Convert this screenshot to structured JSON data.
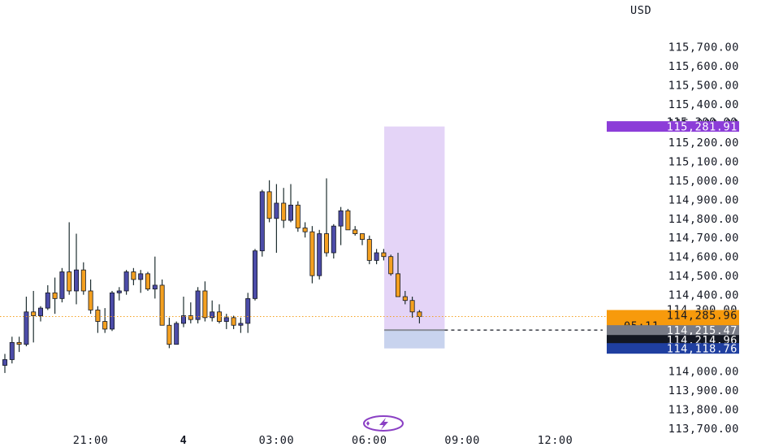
{
  "chart_data": {
    "type": "candlestick",
    "currency_label": "USD",
    "y_ticks": [
      "115,700.00",
      "115,600.00",
      "115,500.00",
      "115,400.00",
      "115,300.00",
      "115,200.00",
      "115,100.00",
      "115,000.00",
      "114,900.00",
      "114,800.00",
      "114,700.00",
      "114,600.00",
      "114,500.00",
      "114,400.00",
      "114,000.00",
      "113,900.00",
      "113,800.00",
      "113,700.00"
    ],
    "x_ticks": [
      {
        "label": "21:00",
        "bar": 12,
        "bold": false
      },
      {
        "label": "4",
        "bar": 25,
        "bold": true
      },
      {
        "label": "03:00",
        "bar": 38,
        "bold": false
      },
      {
        "label": "06:00",
        "bar": 51,
        "bold": false
      },
      {
        "label": "09:00",
        "bar": 64,
        "bold": false
      },
      {
        "label": "12:00",
        "bar": 77,
        "bold": false
      }
    ],
    "ylim": [
      113700,
      115800
    ],
    "candles": [
      {
        "o": 114030,
        "h": 114090,
        "l": 113990,
        "c": 114060
      },
      {
        "o": 114060,
        "h": 114180,
        "l": 114040,
        "c": 114150
      },
      {
        "o": 114150,
        "h": 114180,
        "l": 114100,
        "c": 114140
      },
      {
        "o": 114140,
        "h": 114390,
        "l": 114130,
        "c": 114310
      },
      {
        "o": 114310,
        "h": 114420,
        "l": 114150,
        "c": 114290
      },
      {
        "o": 114290,
        "h": 114340,
        "l": 114260,
        "c": 114330
      },
      {
        "o": 114330,
        "h": 114450,
        "l": 114320,
        "c": 114410
      },
      {
        "o": 114410,
        "h": 114490,
        "l": 114300,
        "c": 114380
      },
      {
        "o": 114380,
        "h": 114540,
        "l": 114360,
        "c": 114520
      },
      {
        "o": 114520,
        "h": 114780,
        "l": 114400,
        "c": 114420
      },
      {
        "o": 114420,
        "h": 114720,
        "l": 114350,
        "c": 114530
      },
      {
        "o": 114530,
        "h": 114570,
        "l": 114400,
        "c": 114420
      },
      {
        "o": 114420,
        "h": 114480,
        "l": 114300,
        "c": 114320
      },
      {
        "o": 114320,
        "h": 114340,
        "l": 114200,
        "c": 114260
      },
      {
        "o": 114260,
        "h": 114330,
        "l": 114200,
        "c": 114220
      },
      {
        "o": 114220,
        "h": 114420,
        "l": 114210,
        "c": 114410
      },
      {
        "o": 114410,
        "h": 114440,
        "l": 114370,
        "c": 114420
      },
      {
        "o": 114420,
        "h": 114530,
        "l": 114400,
        "c": 114520
      },
      {
        "o": 114520,
        "h": 114540,
        "l": 114450,
        "c": 114480
      },
      {
        "o": 114480,
        "h": 114530,
        "l": 114410,
        "c": 114510
      },
      {
        "o": 114510,
        "h": 114520,
        "l": 114420,
        "c": 114430
      },
      {
        "o": 114430,
        "h": 114600,
        "l": 114380,
        "c": 114450
      },
      {
        "o": 114450,
        "h": 114480,
        "l": 114250,
        "c": 114240
      },
      {
        "o": 114240,
        "h": 114280,
        "l": 114120,
        "c": 114140
      },
      {
        "o": 114140,
        "h": 114260,
        "l": 114140,
        "c": 114250
      },
      {
        "o": 114250,
        "h": 114390,
        "l": 114230,
        "c": 114290
      },
      {
        "o": 114290,
        "h": 114360,
        "l": 114250,
        "c": 114270
      },
      {
        "o": 114270,
        "h": 114440,
        "l": 114250,
        "c": 114420
      },
      {
        "o": 114420,
        "h": 114470,
        "l": 114260,
        "c": 114280
      },
      {
        "o": 114280,
        "h": 114370,
        "l": 114260,
        "c": 114310
      },
      {
        "o": 114310,
        "h": 114350,
        "l": 114250,
        "c": 114260
      },
      {
        "o": 114260,
        "h": 114300,
        "l": 114220,
        "c": 114280
      },
      {
        "o": 114280,
        "h": 114290,
        "l": 114220,
        "c": 114240
      },
      {
        "o": 114240,
        "h": 114280,
        "l": 114200,
        "c": 114250
      },
      {
        "o": 114250,
        "h": 114410,
        "l": 114200,
        "c": 114380
      },
      {
        "o": 114380,
        "h": 114640,
        "l": 114370,
        "c": 114630
      },
      {
        "o": 114630,
        "h": 114950,
        "l": 114600,
        "c": 114940
      },
      {
        "o": 114940,
        "h": 115000,
        "l": 114780,
        "c": 114800
      },
      {
        "o": 114800,
        "h": 114980,
        "l": 114620,
        "c": 114880
      },
      {
        "o": 114880,
        "h": 114960,
        "l": 114750,
        "c": 114790
      },
      {
        "o": 114790,
        "h": 114980,
        "l": 114780,
        "c": 114870
      },
      {
        "o": 114870,
        "h": 114890,
        "l": 114730,
        "c": 114750
      },
      {
        "o": 114750,
        "h": 114780,
        "l": 114700,
        "c": 114730
      },
      {
        "o": 114730,
        "h": 114760,
        "l": 114460,
        "c": 114500
      },
      {
        "o": 114500,
        "h": 114740,
        "l": 114480,
        "c": 114720
      },
      {
        "o": 114720,
        "h": 115010,
        "l": 114600,
        "c": 114620
      },
      {
        "o": 114620,
        "h": 114770,
        "l": 114590,
        "c": 114760
      },
      {
        "o": 114760,
        "h": 114860,
        "l": 114660,
        "c": 114840
      },
      {
        "o": 114840,
        "h": 114850,
        "l": 114740,
        "c": 114740
      },
      {
        "o": 114740,
        "h": 114760,
        "l": 114710,
        "c": 114720
      },
      {
        "o": 114720,
        "h": 114720,
        "l": 114660,
        "c": 114690
      },
      {
        "o": 114690,
        "h": 114710,
        "l": 114560,
        "c": 114580
      },
      {
        "o": 114580,
        "h": 114640,
        "l": 114560,
        "c": 114620
      },
      {
        "o": 114620,
        "h": 114640,
        "l": 114580,
        "c": 114600
      },
      {
        "o": 114600,
        "h": 114610,
        "l": 114500,
        "c": 114510
      },
      {
        "o": 114510,
        "h": 114620,
        "l": 114390,
        "c": 114390
      },
      {
        "o": 114390,
        "h": 114420,
        "l": 114350,
        "c": 114370
      },
      {
        "o": 114370,
        "h": 114390,
        "l": 114280,
        "c": 114310
      },
      {
        "o": 114310,
        "h": 114320,
        "l": 114250,
        "c": 114285.96
      }
    ],
    "colors": {
      "up": "#4c4ca8",
      "down": "#f4a020",
      "wick": "#1e2e30",
      "candle_outline": "#131722",
      "position_target": "#e4d4f7",
      "position_stop": "#c8d3ee",
      "current_price_line": "#f4a020",
      "entry_line": "#131722",
      "badge_purple": "#8c3dd8",
      "badge_orange": "#f79a0c",
      "badge_gray": "#787b86",
      "badge_black": "#131722",
      "badge_blue": "#1f3fa0"
    },
    "position_box": {
      "start_bar": 53.3,
      "end_bar": 61.3,
      "target_price": 115281.91,
      "entry_price": 114214.96,
      "stop_price": 114118.76
    },
    "current_price": 114285.96,
    "price_badges": {
      "target": {
        "label": "115,281.91",
        "hidden_label": "115,300.00"
      },
      "current": {
        "label": "114,285.96",
        "countdown": "05:11",
        "hidden_label": "114,300.00"
      },
      "entry_gray": {
        "label": "114,215.47"
      },
      "entry_black": {
        "label": "114,214.96"
      },
      "stop": {
        "label": "114,118.76"
      }
    }
  },
  "icons": {
    "logo": "lightning-bolt-icon"
  }
}
